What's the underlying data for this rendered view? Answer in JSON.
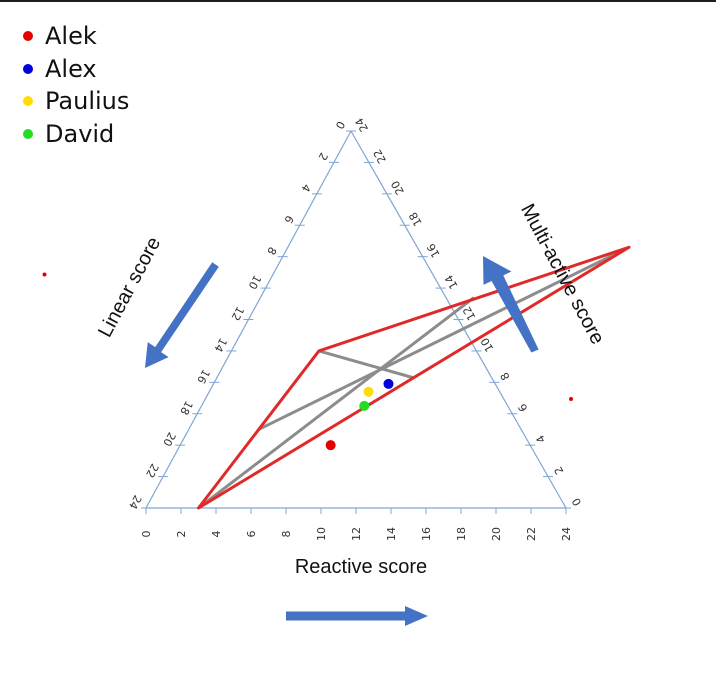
{
  "chart_data": {
    "type": "scatter",
    "subtype": "ternary",
    "axes": {
      "bottom": {
        "label": "Reactive score",
        "range": [
          0,
          24
        ],
        "ticks": [
          0,
          2,
          4,
          6,
          8,
          10,
          12,
          14,
          16,
          18,
          20,
          22,
          24
        ]
      },
      "left": {
        "label": "Linear score",
        "range": [
          0,
          24
        ],
        "ticks": [
          0,
          2,
          4,
          6,
          8,
          10,
          12,
          14,
          16,
          18,
          20,
          22,
          24
        ]
      },
      "right": {
        "label": "Multi-active score",
        "range": [
          0,
          24
        ],
        "ticks": [
          0,
          2,
          4,
          6,
          8,
          10,
          12,
          14,
          16,
          18,
          20,
          22,
          24
        ]
      }
    },
    "triangle": [
      {
        "reactive": 3,
        "linear": 24
      },
      {
        "reactive": 19.5,
        "linear": 7.4
      },
      {
        "reactive": 5,
        "linear": 14
      }
    ],
    "medians": [
      {
        "from": {
          "reactive": 3,
          "linear": 24
        },
        "to": {
          "reactive": 12.2,
          "linear": 10.6
        }
      },
      {
        "from": {
          "reactive": 19.5,
          "linear": 7.4
        },
        "to": {
          "reactive": 4,
          "linear": 19
        }
      },
      {
        "from": {
          "reactive": 5,
          "linear": 14
        },
        "to": {
          "reactive": 11.2,
          "linear": 15.7
        }
      }
    ],
    "series": [
      {
        "name": "Alek",
        "color": "#e60000",
        "points": [
          {
            "reactive": 8.6,
            "linear": 20.0
          }
        ]
      },
      {
        "name": "Alex",
        "color": "#0000dd",
        "points": [
          {
            "reactive": 10.0,
            "linear": 16.1
          }
        ]
      },
      {
        "name": "Paulius",
        "color": "#ffdd00",
        "points": [
          {
            "reactive": 9.1,
            "linear": 16.6
          }
        ]
      },
      {
        "name": "David",
        "color": "#22dd22",
        "points": [
          {
            "reactive": 9.3,
            "linear": 17.5
          }
        ]
      }
    ],
    "legend_position": "top-left",
    "colors": {
      "axis": "#7fa5d6",
      "triangle": "#e02a2a",
      "medians": "#8c8c8c",
      "arrows": "#4472c4"
    }
  }
}
